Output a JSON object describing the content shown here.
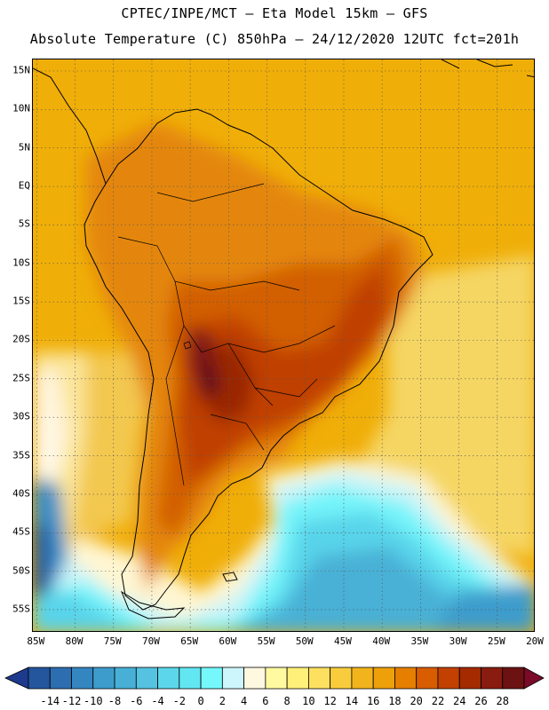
{
  "header": {
    "line1": "CPTEC/INPE/MCT –  Eta Model 15km – GFS",
    "line2": "Absolute Temperature (C) 850hPa – 24/12/2020 12UTC fct=201h"
  },
  "map": {
    "lat_labels": [
      "15N",
      "10N",
      "5N",
      "EQ",
      "5S",
      "10S",
      "15S",
      "20S",
      "25S",
      "30S",
      "35S",
      "40S",
      "45S",
      "50S",
      "55S"
    ],
    "lat_values": [
      15,
      10,
      5,
      0,
      -5,
      -10,
      -15,
      -20,
      -25,
      -30,
      -35,
      -40,
      -45,
      -50,
      -55
    ],
    "lon_labels": [
      "85W",
      "80W",
      "75W",
      "70W",
      "65W",
      "60W",
      "55W",
      "50W",
      "45W",
      "40W",
      "35W",
      "30W",
      "25W",
      "20W"
    ],
    "lon_values": [
      -85,
      -80,
      -75,
      -70,
      -65,
      -60,
      -55,
      -50,
      -45,
      -40,
      -35,
      -30,
      -25,
      -20
    ],
    "extent": {
      "lon_min": -85.5,
      "lon_max": -20.0,
      "lat_min": -58.0,
      "lat_max": 16.5
    },
    "colors": {
      "ocean_warm": "#f0b000",
      "ocean_mid": "#f3d060",
      "cold": "#50e0f0",
      "cold_deep": "#3090d0",
      "hot": "#c04000",
      "hottest": "#701818"
    }
  },
  "colorbar": {
    "labels": [
      "-14",
      "-12",
      "-10",
      "-8",
      "-6",
      "-4",
      "-2",
      "0",
      "2",
      "4",
      "6",
      "8",
      "10",
      "12",
      "14",
      "16",
      "18",
      "20",
      "22",
      "24",
      "26",
      "28"
    ],
    "colors": [
      "#1e3a8c",
      "#24569e",
      "#2c6eb0",
      "#3486c0",
      "#3e9ccc",
      "#48b0d6",
      "#54c2e0",
      "#5cd6ea",
      "#62e6f2",
      "#74f8fc",
      "#ccf6fc",
      "#fff8e0",
      "#fffaa0",
      "#fff07a",
      "#fee060",
      "#f8cc3c",
      "#f2b41c",
      "#eea00a",
      "#e67e00",
      "#d85c00",
      "#c24000",
      "#a42a00",
      "#881c10",
      "#6c1212",
      "#7a0a28"
    ]
  }
}
